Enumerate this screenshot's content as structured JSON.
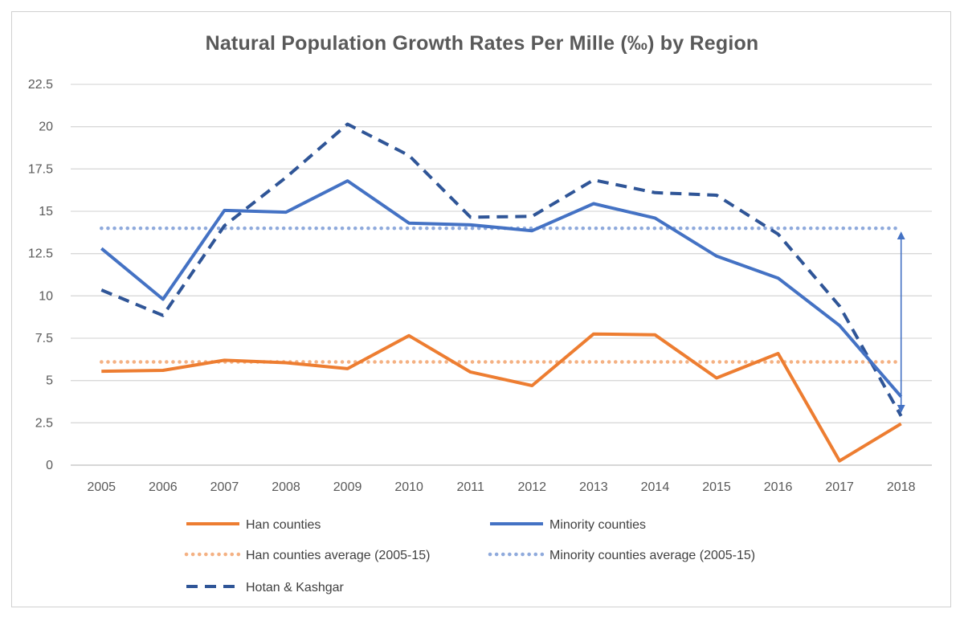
{
  "chart_data": {
    "type": "line",
    "title": "Natural Population Growth Rates Per Mille (‰) by Region",
    "xlabel": "",
    "ylabel": "",
    "x": [
      "2005",
      "2006",
      "2007",
      "2008",
      "2009",
      "2010",
      "2011",
      "2012",
      "2013",
      "2014",
      "2015",
      "2016",
      "2017",
      "2018"
    ],
    "ylim": [
      0,
      22.5
    ],
    "yticks": [
      "0",
      "2.5",
      "5",
      "7.5",
      "10",
      "12.5",
      "15",
      "17.5",
      "20",
      "22.5"
    ],
    "grid": true,
    "legend_position": "bottom",
    "series": [
      {
        "name": "Han counties",
        "color": "#ED7D31",
        "style": "solid",
        "values": [
          5.55,
          5.6,
          6.2,
          6.05,
          5.7,
          7.65,
          5.5,
          4.7,
          7.75,
          7.7,
          5.15,
          6.6,
          0.25,
          2.45
        ]
      },
      {
        "name": "Minority counties",
        "color": "#4472C4",
        "style": "solid",
        "values": [
          12.8,
          9.8,
          15.05,
          14.95,
          16.8,
          14.3,
          14.2,
          13.85,
          15.45,
          14.6,
          12.35,
          11.05,
          8.25,
          4.05
        ]
      },
      {
        "name": "Han counties average (2005-15)",
        "color": "#F4B183",
        "style": "dotted",
        "values": [
          6.1,
          6.1,
          6.1,
          6.1,
          6.1,
          6.1,
          6.1,
          6.1,
          6.1,
          6.1,
          6.1,
          6.1,
          6.1,
          6.1
        ]
      },
      {
        "name": "Minority counties average (2005-15)",
        "color": "#8FAADC",
        "style": "dotted",
        "values": [
          14.0,
          14.0,
          14.0,
          14.0,
          14.0,
          14.0,
          14.0,
          14.0,
          14.0,
          14.0,
          14.0,
          14.0,
          14.0,
          14.0
        ]
      },
      {
        "name": "Hotan & Kashgar",
        "color": "#2F5597",
        "style": "dashed",
        "values": [
          10.35,
          8.85,
          14.15,
          17.0,
          20.15,
          18.3,
          14.65,
          14.7,
          16.85,
          16.1,
          15.95,
          13.65,
          9.4,
          2.9
        ]
      }
    ],
    "annotation": {
      "type": "double-arrow",
      "x": "2018",
      "from": 14.0,
      "to": 2.9,
      "color": "#4472C4"
    }
  }
}
